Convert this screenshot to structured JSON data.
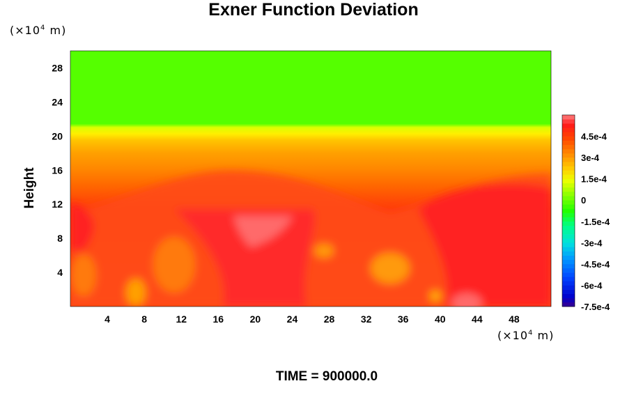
{
  "chart_data": {
    "type": "heatmap",
    "title": "Exner Function Deviation",
    "ylabel": "Height",
    "xunit_prefix": "(×10",
    "xunit_exp": "4",
    "xunit_suffix": " m)",
    "yunit_prefix": "(×10",
    "yunit_exp": "4",
    "yunit_suffix": " m)",
    "footer": "TIME = 900000.0",
    "xlim": [
      0,
      52
    ],
    "ylim": [
      0,
      30
    ],
    "xticks": [
      4,
      8,
      12,
      16,
      20,
      24,
      28,
      32,
      36,
      40,
      44,
      48
    ],
    "yticks": [
      4,
      8,
      12,
      16,
      20,
      24,
      28
    ],
    "colorbar": {
      "min": -0.00075,
      "max": 0.0006,
      "ticks": [
        {
          "value": 0.00045,
          "label": "4.5e-4"
        },
        {
          "value": 0.0003,
          "label": "3e-4"
        },
        {
          "value": 0.00015,
          "label": "1.5e-4"
        },
        {
          "value": 0,
          "label": "0"
        },
        {
          "value": -0.00015,
          "label": "-1.5e-4"
        },
        {
          "value": -0.0003,
          "label": "-3e-4"
        },
        {
          "value": -0.00045,
          "label": "-4.5e-4"
        },
        {
          "value": -0.0006,
          "label": "-6e-4"
        },
        {
          "value": -0.00075,
          "label": "-7.5e-4"
        }
      ]
    },
    "regions": {
      "upper_value": 5e-05,
      "transition_height": 20,
      "lower_mean_value": 0.00042
    }
  }
}
